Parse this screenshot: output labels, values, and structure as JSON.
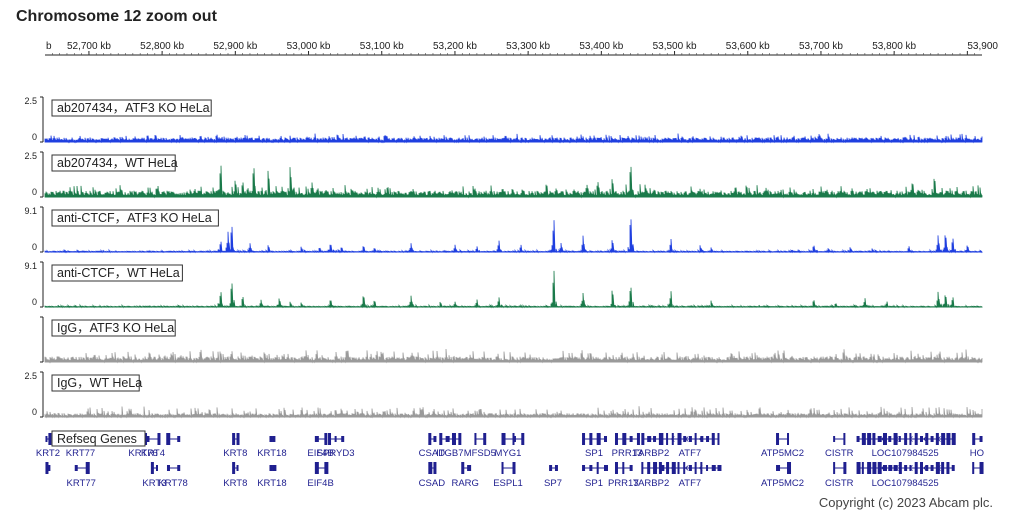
{
  "title": "Chromosome 12 zoom out",
  "copyright": "Copyright (c) 2023 Abcam plc.",
  "colors": {
    "blue": "#1f3fe0",
    "green": "#1a7a4a",
    "gray": "#9a9a9a",
    "gene": "#1f1f8f"
  },
  "chart_data": {
    "type": "area",
    "ruler": {
      "first_label_fragment": "b",
      "tick_labels": [
        "52,700 kb",
        "52,800 kb",
        "52,900 kb",
        "53,000 kb",
        "53,100 kb",
        "53,200 kb",
        "53,300 kb",
        "53,400 kb",
        "53,500 kb",
        "53,600 kb",
        "53,700 kb",
        "53,800 kb",
        "53,900"
      ],
      "tick_values_kb": [
        52700,
        52800,
        52900,
        53000,
        53100,
        53200,
        53300,
        53400,
        53500,
        53600,
        53700,
        53800,
        53900
      ],
      "xlim_kb": [
        52640,
        53920
      ]
    },
    "series": [
      {
        "name": "ab207434，ATF3 KO HeLa",
        "ymax_label": "2.5",
        "ymin_label": "0",
        "ylim": [
          0,
          2.5
        ],
        "color": "blue",
        "base_level": 0.18,
        "noise": 0.12,
        "peaks": [
          [
            53385,
            0.35
          ],
          [
            53615,
            0.3
          ],
          [
            53870,
            0.3
          ],
          [
            52880,
            0.25
          ]
        ]
      },
      {
        "name": "ab207434，WT HeLa",
        "ymax_label": "2.5",
        "ymin_label": "0",
        "ylim": [
          0,
          2.5
        ],
        "color": "green",
        "base_level": 0.25,
        "noise": 0.18,
        "peaks": [
          [
            52880,
            2.1
          ],
          [
            52900,
            1.1
          ],
          [
            52910,
            1.0
          ],
          [
            52925,
            2.0
          ],
          [
            52945,
            1.7
          ],
          [
            52975,
            1.9
          ],
          [
            53005,
            0.9
          ],
          [
            53060,
            0.5
          ],
          [
            53225,
            0.7
          ],
          [
            53265,
            0.6
          ],
          [
            53325,
            0.9
          ],
          [
            53380,
            0.8
          ],
          [
            53395,
            1.0
          ],
          [
            53415,
            1.2
          ],
          [
            53440,
            2.1
          ],
          [
            53460,
            0.8
          ],
          [
            53535,
            0.5
          ],
          [
            53700,
            0.6
          ],
          [
            53825,
            1.0
          ],
          [
            53855,
            1.3
          ]
        ]
      },
      {
        "name": "anti-CTCF，ATF3 KO HeLa",
        "ymax_label": "9.1",
        "ymin_label": "0",
        "ylim": [
          0,
          9.1
        ],
        "color": "blue",
        "base_level": 0.12,
        "noise": 0.12,
        "peaks": [
          [
            52880,
            2.5
          ],
          [
            52890,
            4.1
          ],
          [
            52895,
            6.2
          ],
          [
            52920,
            1.8
          ],
          [
            52945,
            1.6
          ],
          [
            52990,
            1.2
          ],
          [
            53015,
            1.1
          ],
          [
            53030,
            2.0
          ],
          [
            53045,
            1.2
          ],
          [
            53075,
            1.5
          ],
          [
            53090,
            1.0
          ],
          [
            53140,
            1.8
          ],
          [
            53200,
            1.5
          ],
          [
            53230,
            1.2
          ],
          [
            53260,
            2.5
          ],
          [
            53290,
            1.6
          ],
          [
            53335,
            7.4
          ],
          [
            53345,
            1.9
          ],
          [
            53375,
            3.4
          ],
          [
            53415,
            2.9
          ],
          [
            53440,
            8.3
          ],
          [
            53495,
            2.8
          ],
          [
            53535,
            1.5
          ],
          [
            53550,
            1.0
          ],
          [
            53690,
            1.6
          ],
          [
            53710,
            0.9
          ],
          [
            53740,
            1.1
          ],
          [
            53770,
            0.8
          ],
          [
            53820,
            1.3
          ],
          [
            53860,
            3.5
          ],
          [
            53870,
            4.3
          ],
          [
            53880,
            3.2
          ],
          [
            53900,
            1.6
          ]
        ]
      },
      {
        "name": "anti-CTCF，WT HeLa",
        "ymax_label": "9.1",
        "ymin_label": "0",
        "ylim": [
          0,
          9.1
        ],
        "color": "green",
        "base_level": 0.12,
        "noise": 0.12,
        "peaks": [
          [
            52880,
            3.6
          ],
          [
            52895,
            5.8
          ],
          [
            52910,
            2.5
          ],
          [
            52935,
            1.5
          ],
          [
            52960,
            2.0
          ],
          [
            52975,
            1.2
          ],
          [
            52990,
            1.0
          ],
          [
            53030,
            1.8
          ],
          [
            53075,
            2.8
          ],
          [
            53090,
            1.6
          ],
          [
            53140,
            2.3
          ],
          [
            53180,
            1.2
          ],
          [
            53200,
            1.1
          ],
          [
            53230,
            1.6
          ],
          [
            53260,
            2.1
          ],
          [
            53335,
            8.4
          ],
          [
            53375,
            2.9
          ],
          [
            53415,
            4.0
          ],
          [
            53440,
            4.9
          ],
          [
            53495,
            3.4
          ],
          [
            53550,
            1.4
          ],
          [
            53690,
            1.7
          ],
          [
            53720,
            0.9
          ],
          [
            53760,
            1.9
          ],
          [
            53790,
            1.2
          ],
          [
            53860,
            3.2
          ],
          [
            53870,
            3.0
          ],
          [
            53880,
            2.3
          ]
        ]
      },
      {
        "name": "IgG，ATF3 KO HeLa",
        "ymax_label": "",
        "ymin_label": "",
        "ylim": [
          0,
          2.5
        ],
        "color": "gray",
        "base_level": 0.22,
        "noise": 0.22,
        "peaks": []
      },
      {
        "name": "IgG，WT HeLa",
        "ymax_label": "2.5",
        "ymin_label": "0",
        "ylim": [
          0,
          2.5
        ],
        "color": "gray",
        "base_level": 0.15,
        "noise": 0.2,
        "peaks": []
      }
    ],
    "refseq": {
      "label": "Refseq Genes",
      "row1": [
        {
          "name": "KRT2",
          "start": 52642,
          "end": 52646
        },
        {
          "name": "KRT77",
          "start": 52680,
          "end": 52697
        },
        {
          "name": "KRT76",
          "start": 52770,
          "end": 52778
        },
        {
          "name": "KRT4",
          "start": 52780,
          "end": 52795
        },
        {
          "name": "",
          "start": 52807,
          "end": 52822
        },
        {
          "name": "KRT8",
          "start": 52897,
          "end": 52903
        },
        {
          "name": "KRT18",
          "start": 52948,
          "end": 52952
        },
        {
          "name": "EIF4B",
          "start": 53010,
          "end": 53023
        },
        {
          "name": "SPRYD3",
          "start": 53028,
          "end": 53046
        },
        {
          "name": "CSAD",
          "start": 53165,
          "end": 53172
        },
        {
          "name": "ITGB7",
          "start": 53180,
          "end": 53206
        },
        {
          "name": "MFSD5",
          "start": 53228,
          "end": 53240
        },
        {
          "name": "MYG1",
          "start": 53265,
          "end": 53280
        },
        {
          "name": "",
          "start": 53282,
          "end": 53292
        },
        {
          "name": "SP1",
          "start": 53375,
          "end": 53405
        },
        {
          "name": "PRR13",
          "start": 53420,
          "end": 53450
        },
        {
          "name": "TARBP2",
          "start": 53456,
          "end": 53480
        },
        {
          "name": "ATF7",
          "start": 53482,
          "end": 53560
        },
        {
          "name": "ATP5MC2",
          "start": 53640,
          "end": 53655
        },
        {
          "name": "CISTR",
          "start": 53718,
          "end": 53732
        },
        {
          "name": "LOC107984525",
          "start": 53750,
          "end": 53880
        },
        {
          "name": "HO",
          "start": 53908,
          "end": 53918
        }
      ],
      "row2": [
        {
          "name": "",
          "start": 52642,
          "end": 52646
        },
        {
          "name": "KRT77",
          "start": 52682,
          "end": 52697
        },
        {
          "name": "KRT3",
          "start": 52786,
          "end": 52793
        },
        {
          "name": "KRT78",
          "start": 52808,
          "end": 52822
        },
        {
          "name": "KRT8",
          "start": 52897,
          "end": 52903
        },
        {
          "name": "KRT18",
          "start": 52948,
          "end": 52952
        },
        {
          "name": "EIF4B",
          "start": 53010,
          "end": 53023
        },
        {
          "name": "CSAD",
          "start": 53165,
          "end": 53172
        },
        {
          "name": "RARG",
          "start": 53210,
          "end": 53218
        },
        {
          "name": "ESPL1",
          "start": 53265,
          "end": 53280
        },
        {
          "name": "SP7",
          "start": 53330,
          "end": 53338
        },
        {
          "name": "SP1",
          "start": 53375,
          "end": 53405
        },
        {
          "name": "PRR13",
          "start": 53420,
          "end": 53440
        },
        {
          "name": "TARBP2",
          "start": 53456,
          "end": 53480
        },
        {
          "name": "ATF7",
          "start": 53482,
          "end": 53560
        },
        {
          "name": "ATP5MC2",
          "start": 53640,
          "end": 53655
        },
        {
          "name": "CISTR",
          "start": 53718,
          "end": 53732
        },
        {
          "name": "LOC107984525",
          "start": 53750,
          "end": 53880
        },
        {
          "name": "",
          "start": 53908,
          "end": 53918
        }
      ]
    }
  }
}
